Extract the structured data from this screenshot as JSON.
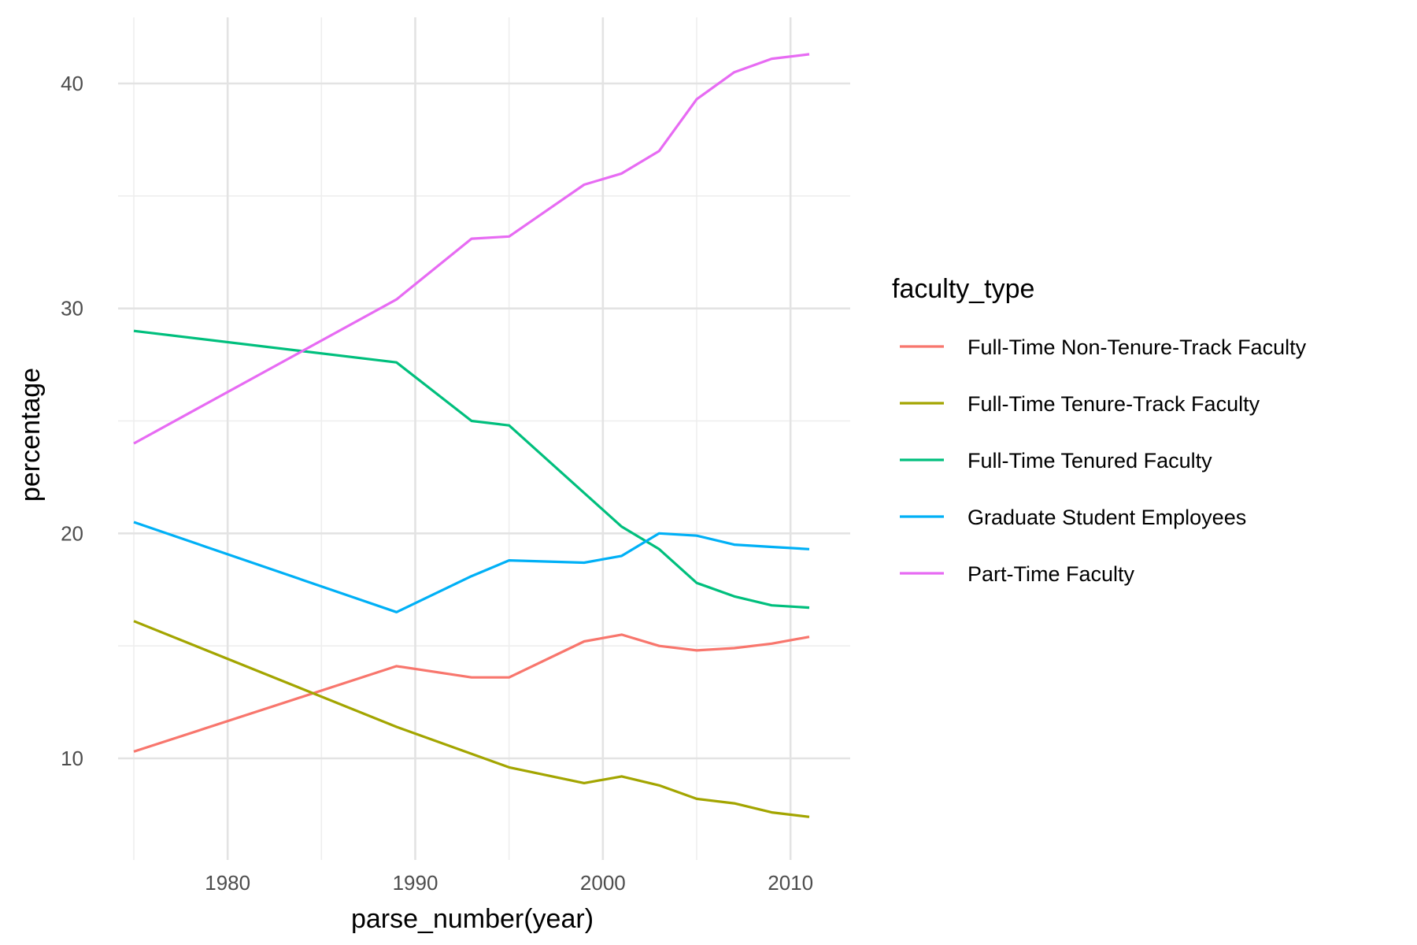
{
  "chart_data": {
    "type": "line",
    "xlabel": "parse_number(year)",
    "ylabel": "percentage",
    "xlim": [
      1975,
      2011
    ],
    "ylim": [
      6.5,
      43.5
    ],
    "x_ticks": [
      1980,
      1990,
      2000,
      2010
    ],
    "y_ticks": [
      10,
      20,
      30,
      40
    ],
    "grid": true,
    "legend": {
      "title": "faculty_type",
      "position": "right"
    },
    "series": [
      {
        "name": "Full-Time Non-Tenure-Track Faculty",
        "color": "#F8766D",
        "x": [
          1975,
          1989,
          1993,
          1995,
          1999,
          2001,
          2003,
          2005,
          2007,
          2009,
          2011
        ],
        "values": [
          10.3,
          14.1,
          13.6,
          13.6,
          15.2,
          15.5,
          15.0,
          14.8,
          14.9,
          15.1,
          15.4
        ]
      },
      {
        "name": "Full-Time Tenure-Track Faculty",
        "color": "#A3A500",
        "x": [
          1975,
          1989,
          1993,
          1995,
          1999,
          2001,
          2003,
          2005,
          2007,
          2009,
          2011
        ],
        "values": [
          16.1,
          11.4,
          10.2,
          9.6,
          8.9,
          9.2,
          8.8,
          8.2,
          8.0,
          7.6,
          7.4
        ]
      },
      {
        "name": "Full-Time Tenured Faculty",
        "color": "#00BF7D",
        "x": [
          1975,
          1989,
          1993,
          1995,
          1999,
          2001,
          2003,
          2005,
          2007,
          2009,
          2011
        ],
        "values": [
          29.0,
          27.6,
          25.0,
          24.8,
          21.8,
          20.3,
          19.3,
          17.8,
          17.2,
          16.8,
          16.7
        ]
      },
      {
        "name": "Graduate Student Employees",
        "color": "#00B0F6",
        "x": [
          1975,
          1989,
          1993,
          1995,
          1999,
          2001,
          2003,
          2005,
          2007,
          2009,
          2011
        ],
        "values": [
          20.5,
          16.5,
          18.1,
          18.8,
          18.7,
          19.0,
          20.0,
          19.9,
          19.5,
          19.4,
          19.3
        ]
      },
      {
        "name": "Part-Time Faculty",
        "color": "#E76BF3",
        "x": [
          1975,
          1989,
          1993,
          1995,
          1999,
          2001,
          2003,
          2005,
          2007,
          2009,
          2011
        ],
        "values": [
          24.0,
          30.4,
          33.1,
          33.2,
          35.5,
          36.0,
          37.0,
          39.3,
          40.5,
          41.1,
          41.3
        ]
      }
    ]
  }
}
